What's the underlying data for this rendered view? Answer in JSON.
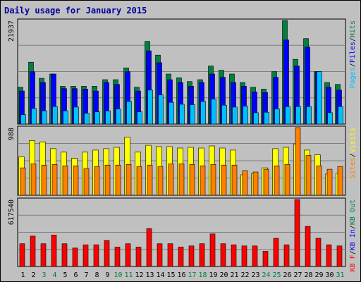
{
  "colors": {
    "background": "#c0c0c0",
    "panel": "#c0c0c0",
    "title": "#0000a0",
    "hits": "#008040",
    "files": "#0000ff",
    "pages": "#00c0ff",
    "visits": "#ffff00",
    "sites": "#ff8000",
    "kbin": "#ff0000",
    "kbout": "#0000ff"
  },
  "chart_data": [
    {
      "type": "bar",
      "title": "Daily usage for January 2015",
      "categories": [
        "1",
        "2",
        "3",
        "4",
        "5",
        "6",
        "7",
        "8",
        "9",
        "10",
        "11",
        "12",
        "13",
        "14",
        "15",
        "16",
        "17",
        "18",
        "19",
        "20",
        "21",
        "22",
        "23",
        "24",
        "25",
        "26",
        "27",
        "28",
        "29",
        "30",
        "31"
      ],
      "weekend_days": [
        "3",
        "4",
        "10",
        "11",
        "17",
        "18",
        "24",
        "25",
        "31"
      ],
      "ylabel_top": "21937",
      "ylim": [
        0,
        21937
      ],
      "legend": [
        {
          "label": "Pages",
          "color": "#00c0ff"
        },
        {
          "label": "/",
          "color": "#000000"
        },
        {
          "label": "Files",
          "color": "#0000ff"
        },
        {
          "label": "/",
          "color": "#000000"
        },
        {
          "label": "Hits",
          "color": "#008040"
        }
      ],
      "series": [
        {
          "name": "Hits",
          "values": [
            7800,
            13100,
            9700,
            10600,
            8000,
            8000,
            8000,
            8000,
            9400,
            9400,
            11900,
            7800,
            17500,
            14600,
            10600,
            9800,
            9000,
            9400,
            12300,
            11400,
            10600,
            8800,
            7800,
            7400,
            11100,
            21937,
            13700,
            18100,
            11100,
            8800,
            8400
          ]
        },
        {
          "name": "Files",
          "values": [
            7000,
            11100,
            8800,
            10600,
            7500,
            7500,
            7400,
            7000,
            8800,
            8400,
            11100,
            7000,
            15500,
            13000,
            9400,
            8800,
            8000,
            8800,
            10600,
            9900,
            8800,
            8000,
            6800,
            6700,
            9900,
            17800,
            12300,
            16300,
            11100,
            7800,
            7200
          ]
        },
        {
          "name": "Pages",
          "values": [
            2000,
            3300,
            2800,
            3700,
            2800,
            3600,
            2300,
            2600,
            2800,
            3200,
            4800,
            2600,
            7200,
            6200,
            4600,
            4200,
            4100,
            4800,
            5300,
            4000,
            3600,
            3800,
            2400,
            2500,
            3200,
            3700,
            3700,
            3700,
            11100,
            2400,
            3700
          ]
        }
      ]
    },
    {
      "type": "bar",
      "ylabel_top": "988",
      "ylim": [
        0,
        988
      ],
      "legend": [
        {
          "label": "Sites",
          "color": "#ff8000"
        },
        {
          "label": "/",
          "color": "#000000"
        },
        {
          "label": "Visits",
          "color": "#ffff00"
        }
      ],
      "series": [
        {
          "name": "Visits",
          "values": [
            560,
            800,
            780,
            680,
            630,
            540,
            630,
            660,
            680,
            700,
            848,
            630,
            730,
            710,
            710,
            690,
            700,
            690,
            720,
            690,
            660,
            300,
            320,
            400,
            680,
            700,
            750,
            660,
            590,
            310,
            320
          ]
        },
        {
          "name": "Sites",
          "values": [
            400,
            460,
            440,
            450,
            430,
            430,
            390,
            420,
            440,
            440,
            450,
            420,
            440,
            420,
            460,
            460,
            450,
            430,
            450,
            440,
            440,
            360,
            340,
            380,
            430,
            450,
            988,
            580,
            430,
            380,
            420
          ]
        }
      ]
    },
    {
      "type": "bar",
      "ylabel_top": "617540",
      "ylim": [
        0,
        617540
      ],
      "legend": [
        {
          "label": "KB F",
          "color": "#ff0000"
        },
        {
          "label": "/",
          "color": "#000000"
        },
        {
          "label": "KB In",
          "color": "#0000ff"
        },
        {
          "label": "/",
          "color": "#000000"
        },
        {
          "label": "KB Out",
          "color": "#008040"
        }
      ],
      "series": [
        {
          "name": "KB F",
          "values": [
            210000,
            280000,
            210000,
            290000,
            210000,
            170000,
            200000,
            200000,
            240000,
            180000,
            210000,
            180000,
            350000,
            210000,
            210000,
            180000,
            190000,
            210000,
            300000,
            210000,
            200000,
            190000,
            190000,
            140000,
            260000,
            200000,
            617540,
            370000,
            260000,
            200000,
            190000
          ]
        }
      ]
    }
  ]
}
